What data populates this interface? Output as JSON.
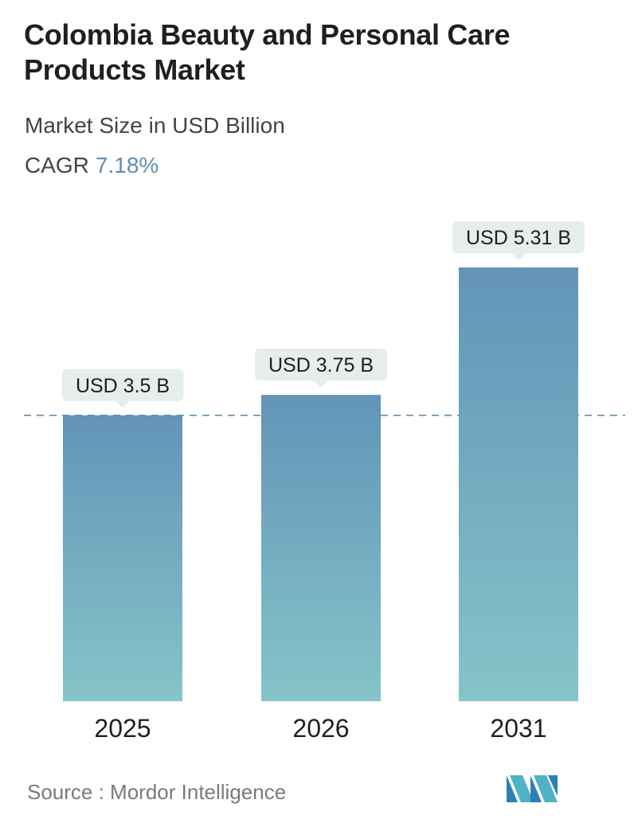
{
  "header": {
    "title": "Colombia Beauty and Personal Care Products Market",
    "subtitle": "Market Size in USD Billion",
    "cagr_label": "CAGR",
    "cagr_value": "7.18%"
  },
  "footer": {
    "source": "Source :  Mordor Intelligence",
    "logo_icon": "mordor-intelligence-logo-icon"
  },
  "colors": {
    "bar_top": "#6394b8",
    "bar_bottom": "#85c4c9",
    "label_bg": "#e6eded",
    "reference_line": "#5f8fae",
    "cagr_accent": "#5f8fae"
  },
  "chart_data": {
    "type": "bar",
    "categories": [
      "2025",
      "2026",
      "2031"
    ],
    "values": [
      3.5,
      3.75,
      5.31
    ],
    "data_labels": [
      "USD 3.5 B",
      "USD 3.75 B",
      "USD 5.31 B"
    ],
    "reference_line_value": 3.5,
    "grid": false,
    "legend": "none"
  }
}
